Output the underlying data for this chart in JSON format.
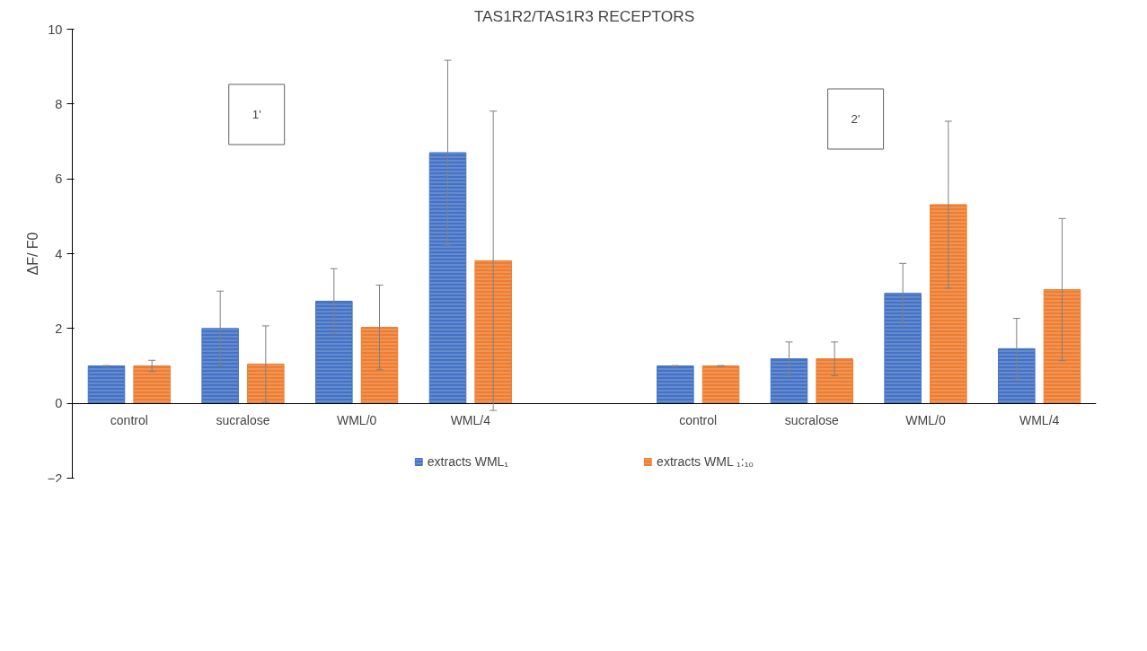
{
  "chart_data": {
    "type": "bar",
    "title": "TAS1R2/TAS1R3 RECEPTORS",
    "ylabel": "ΔF/ F0",
    "categories": [
      "control",
      "sucralose",
      "WML/0",
      "WML/4",
      null,
      "control",
      "sucralose",
      "WML/0",
      "WML/4"
    ],
    "series": [
      {
        "name": "extracts WML₁",
        "color": "#4472c4",
        "values": [
          1.0,
          2.0,
          2.73,
          6.7,
          null,
          1.0,
          1.19,
          2.94,
          1.46
        ],
        "errors": [
          0.01,
          1.0,
          0.87,
          2.47,
          null,
          0.01,
          0.45,
          0.8,
          0.81
        ]
      },
      {
        "name": "extracts WML ₁:₁₀",
        "color": "#ed7d31",
        "values": [
          1.0,
          1.05,
          2.03,
          3.81,
          null,
          1.0,
          1.19,
          5.31,
          3.04
        ],
        "errors": [
          0.15,
          1.02,
          1.13,
          4.0,
          null,
          0.01,
          0.45,
          2.23,
          1.9
        ]
      }
    ],
    "annotations": [
      "1'",
      "2'"
    ],
    "ylim": [
      -2,
      10
    ],
    "yticks": [
      -2,
      0,
      2,
      4,
      6,
      8,
      10
    ],
    "grid": false,
    "legend": "bottom"
  }
}
